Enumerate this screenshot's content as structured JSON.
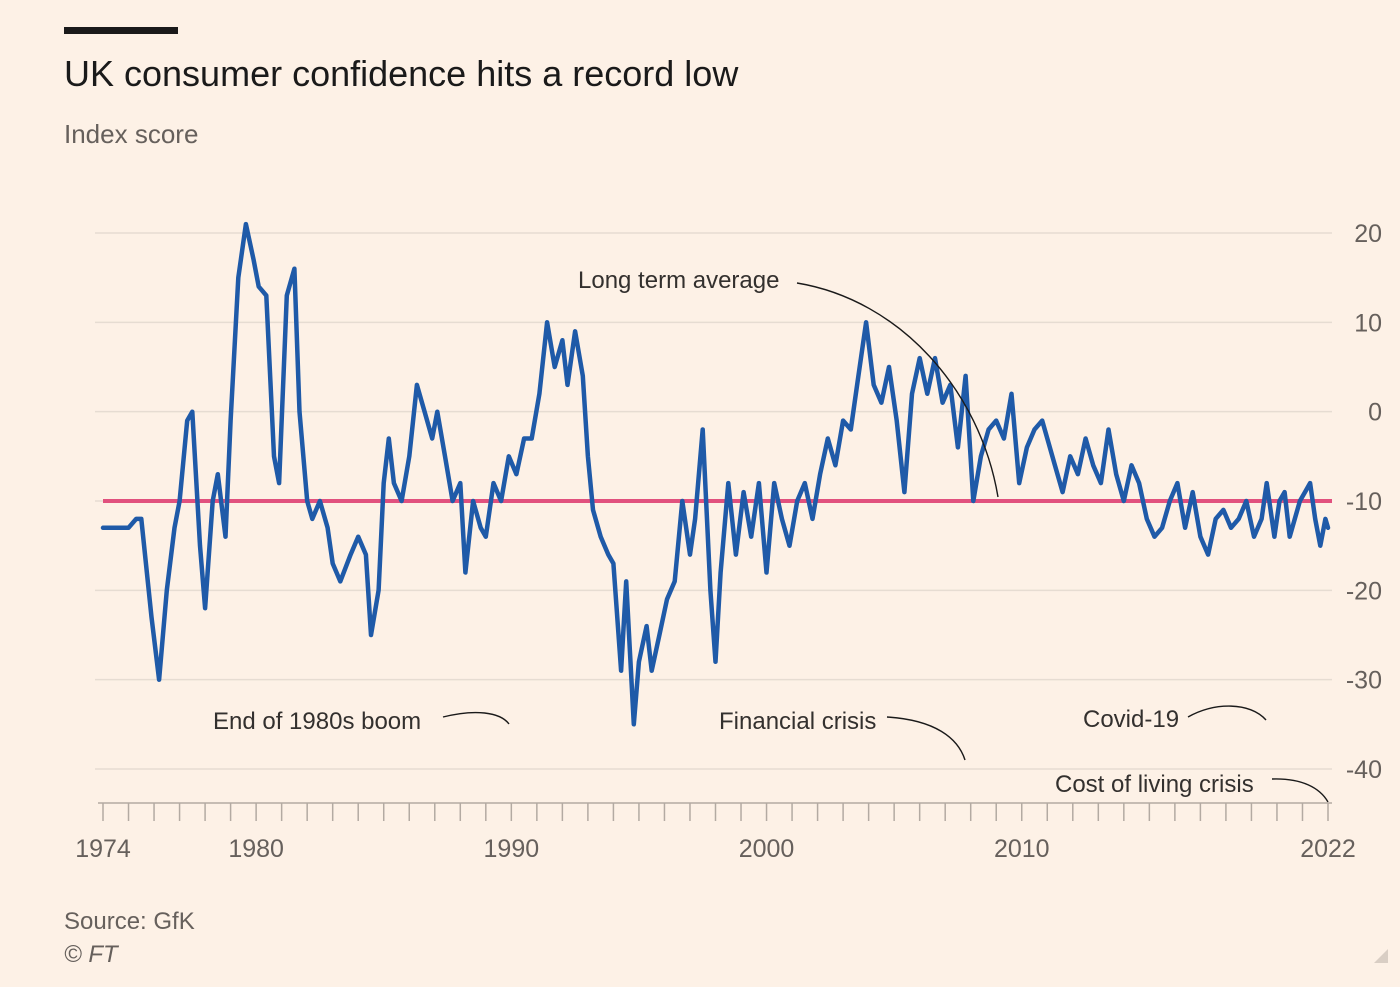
{
  "header": {
    "title": "UK consumer confidence hits a record low",
    "subtitle": "Index score"
  },
  "footer": {
    "source": "Source: GfK",
    "credit": "© FT"
  },
  "colors": {
    "series": "#1f5aa8",
    "average": "#e1517e",
    "grid": "#e6dcd2",
    "text": "#66605c"
  },
  "chart_data": {
    "type": "line",
    "title": "UK consumer confidence hits a record low",
    "ylabel": "Index score",
    "xlim": [
      1974,
      2022
    ],
    "ylim": [
      -45,
      22
    ],
    "x_ticks": [
      "1974",
      "1980",
      "1990",
      "2000",
      "2010",
      "2022"
    ],
    "y_ticks": [
      "20",
      "10",
      "0",
      "-10",
      "-20",
      "-30",
      "-40"
    ],
    "grid": true,
    "y_axis_side": "right",
    "reference_line": {
      "label": "Long term average",
      "value": -10
    },
    "annotations": [
      {
        "label": "Long term average",
        "x": 2008.9,
        "y": -10
      },
      {
        "label": "End of 1980s boom",
        "x": 1989.2,
        "y": -35
      },
      {
        "label": "Financial crisis",
        "x": 2008.5,
        "y": -39
      },
      {
        "label": "Covid-19",
        "x": 2020.5,
        "y": -36
      },
      {
        "label": "Cost of living crisis",
        "x": 2022.0,
        "y": -44
      }
    ],
    "series": [
      {
        "points": [
          [
            1974.0,
            -13
          ],
          [
            1974.5,
            -13
          ],
          [
            1975.0,
            -13
          ],
          [
            1975.3,
            -12
          ],
          [
            1975.5,
            -12
          ],
          [
            1975.9,
            -23
          ],
          [
            1976.2,
            -30
          ],
          [
            1976.5,
            -20
          ],
          [
            1976.8,
            -13
          ],
          [
            1977.0,
            -10
          ],
          [
            1977.3,
            -1
          ],
          [
            1977.5,
            0
          ],
          [
            1977.8,
            -15
          ],
          [
            1978.0,
            -22
          ],
          [
            1978.3,
            -10
          ],
          [
            1978.5,
            -7
          ],
          [
            1978.8,
            -14
          ],
          [
            1979.0,
            -1
          ],
          [
            1979.3,
            15
          ],
          [
            1979.6,
            21
          ],
          [
            1979.9,
            17
          ],
          [
            1980.1,
            14
          ],
          [
            1980.4,
            13
          ],
          [
            1980.7,
            -5
          ],
          [
            1980.9,
            -8
          ],
          [
            1981.2,
            13
          ],
          [
            1981.5,
            16
          ],
          [
            1981.7,
            0
          ],
          [
            1982.0,
            -10
          ],
          [
            1982.2,
            -12
          ],
          [
            1982.5,
            -10
          ],
          [
            1982.8,
            -13
          ],
          [
            1983.0,
            -17
          ],
          [
            1983.3,
            -19
          ],
          [
            1983.7,
            -16
          ],
          [
            1984.0,
            -14
          ],
          [
            1984.3,
            -16
          ],
          [
            1984.5,
            -25
          ],
          [
            1984.8,
            -20
          ],
          [
            1985.0,
            -8
          ],
          [
            1985.2,
            -3
          ],
          [
            1985.4,
            -8
          ],
          [
            1985.7,
            -10
          ],
          [
            1986.0,
            -5
          ],
          [
            1986.3,
            3
          ],
          [
            1986.6,
            0
          ],
          [
            1986.9,
            -3
          ],
          [
            1987.1,
            0
          ],
          [
            1987.4,
            -5
          ],
          [
            1987.7,
            -10
          ],
          [
            1988.0,
            -8
          ],
          [
            1988.2,
            -18
          ],
          [
            1988.5,
            -10
          ],
          [
            1988.8,
            -13
          ],
          [
            1989.0,
            -14
          ],
          [
            1989.3,
            -8
          ],
          [
            1989.6,
            -10
          ],
          [
            1989.9,
            -5
          ],
          [
            1990.2,
            -7
          ],
          [
            1990.5,
            -3
          ],
          [
            1990.8,
            -3
          ],
          [
            1991.1,
            2
          ],
          [
            1991.4,
            10
          ],
          [
            1991.7,
            5
          ],
          [
            1992.0,
            8
          ],
          [
            1992.2,
            3
          ],
          [
            1992.5,
            9
          ],
          [
            1992.8,
            4
          ],
          [
            1993.0,
            -5
          ],
          [
            1993.2,
            -11
          ],
          [
            1993.5,
            -14
          ],
          [
            1993.8,
            -16
          ],
          [
            1994.0,
            -17
          ],
          [
            1994.3,
            -29
          ],
          [
            1994.5,
            -19
          ],
          [
            1994.8,
            -35
          ],
          [
            1995.0,
            -28
          ],
          [
            1995.3,
            -24
          ],
          [
            1995.5,
            -29
          ],
          [
            1995.8,
            -25
          ],
          [
            1996.1,
            -21
          ],
          [
            1996.4,
            -19
          ],
          [
            1996.7,
            -10
          ],
          [
            1997.0,
            -16
          ],
          [
            1997.2,
            -12
          ],
          [
            1997.5,
            -2
          ],
          [
            1997.8,
            -20
          ],
          [
            1998.0,
            -28
          ],
          [
            1998.2,
            -18
          ],
          [
            1998.5,
            -8
          ],
          [
            1998.8,
            -16
          ],
          [
            1999.1,
            -9
          ],
          [
            1999.4,
            -14
          ],
          [
            1999.7,
            -8
          ],
          [
            2000.0,
            -18
          ],
          [
            2000.3,
            -8
          ],
          [
            2000.6,
            -12
          ],
          [
            2000.9,
            -15
          ],
          [
            2001.2,
            -10
          ],
          [
            2001.5,
            -8
          ],
          [
            2001.8,
            -12
          ],
          [
            2002.1,
            -7
          ],
          [
            2002.4,
            -3
          ],
          [
            2002.7,
            -6
          ],
          [
            2003.0,
            -1
          ],
          [
            2003.3,
            -2
          ],
          [
            2003.6,
            4
          ],
          [
            2003.9,
            10
          ],
          [
            2004.2,
            3
          ],
          [
            2004.5,
            1
          ],
          [
            2004.8,
            5
          ],
          [
            2005.1,
            -1
          ],
          [
            2005.4,
            -9
          ],
          [
            2005.7,
            2
          ],
          [
            2006.0,
            6
          ],
          [
            2006.3,
            2
          ],
          [
            2006.6,
            6
          ],
          [
            2006.9,
            1
          ],
          [
            2007.2,
            3
          ],
          [
            2007.5,
            -4
          ],
          [
            2007.8,
            4
          ],
          [
            2008.1,
            -10
          ],
          [
            2008.4,
            -5
          ],
          [
            2008.7,
            -2
          ],
          [
            2009.0,
            -1
          ],
          [
            2009.3,
            -3
          ],
          [
            2009.6,
            2
          ],
          [
            2009.9,
            -8
          ],
          [
            2010.2,
            -4
          ],
          [
            2010.5,
            -2
          ],
          [
            2010.8,
            -1
          ],
          [
            2011.0,
            -3
          ],
          [
            2011.3,
            -6
          ],
          [
            2011.6,
            -9
          ],
          [
            2011.9,
            -5
          ],
          [
            2012.2,
            -7
          ],
          [
            2012.5,
            -3
          ],
          [
            2012.8,
            -6
          ],
          [
            2013.1,
            -8
          ],
          [
            2013.4,
            -2
          ],
          [
            2013.7,
            -7
          ],
          [
            2014.0,
            -10
          ],
          [
            2014.3,
            -6
          ],
          [
            2014.6,
            -8
          ],
          [
            2014.9,
            -12
          ],
          [
            2015.2,
            -14
          ],
          [
            2015.5,
            -13
          ],
          [
            2015.8,
            -10
          ],
          [
            2016.1,
            -8
          ],
          [
            2016.4,
            -13
          ],
          [
            2016.7,
            -9
          ],
          [
            2017.0,
            -14
          ],
          [
            2017.3,
            -16
          ],
          [
            2017.6,
            -12
          ],
          [
            2017.9,
            -11
          ],
          [
            2018.2,
            -13
          ],
          [
            2018.5,
            -12
          ],
          [
            2018.8,
            -10
          ],
          [
            2019.1,
            -14
          ],
          [
            2019.4,
            -12
          ],
          [
            2019.6,
            -8
          ],
          [
            2019.9,
            -14
          ],
          [
            2020.1,
            -10
          ],
          [
            2020.3,
            -9
          ],
          [
            2020.5,
            -14
          ],
          [
            2020.7,
            -12
          ],
          [
            2020.9,
            -10
          ],
          [
            2021.1,
            -9
          ],
          [
            2021.3,
            -8
          ],
          [
            2021.5,
            -12
          ],
          [
            2021.7,
            -15
          ],
          [
            2021.9,
            -12
          ],
          [
            2022.0,
            -13
          ]
        ]
      }
    ]
  }
}
